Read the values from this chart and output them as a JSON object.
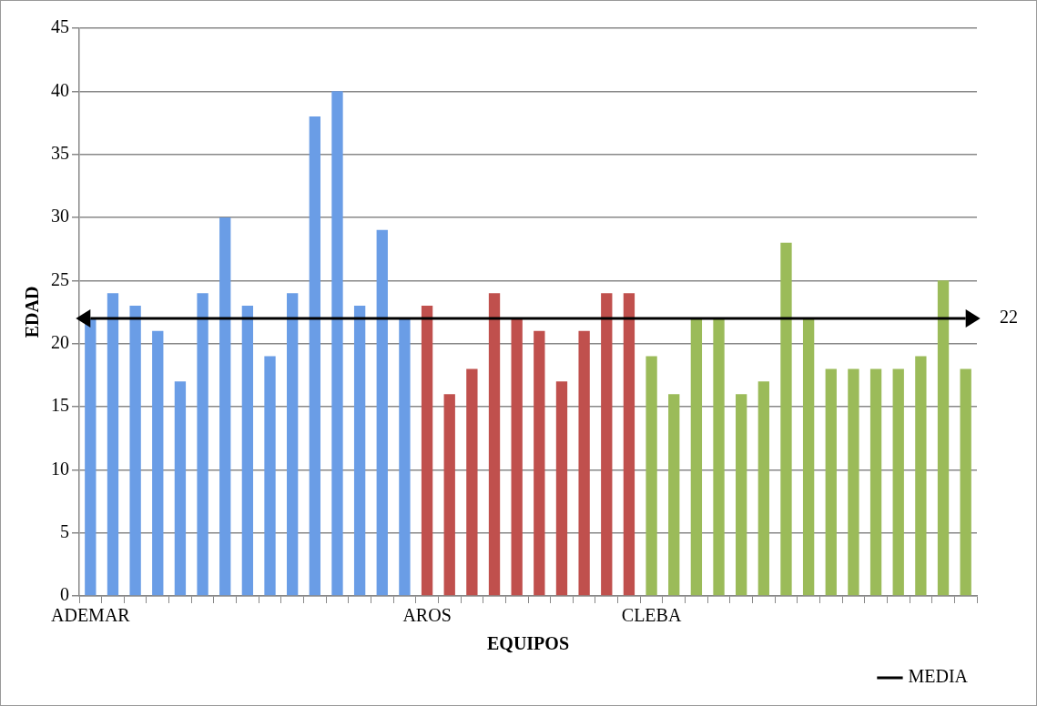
{
  "chart_data": {
    "type": "bar",
    "xlabel": "EQUIPOS",
    "ylabel": "EDAD",
    "categories": [
      "ADEMAR",
      null,
      null,
      null,
      null,
      null,
      null,
      null,
      null,
      null,
      null,
      null,
      null,
      null,
      null,
      "AROS",
      null,
      null,
      null,
      null,
      null,
      null,
      null,
      null,
      null,
      "CLEBA",
      null,
      null,
      null,
      null,
      null,
      null,
      null,
      null,
      null,
      null,
      null,
      null,
      null,
      null
    ],
    "series": [
      {
        "colors": [
          "#6a9de6",
          "#6a9de6",
          "#6a9de6",
          "#6a9de6",
          "#6a9de6",
          "#6a9de6",
          "#6a9de6",
          "#6a9de6",
          "#6a9de6",
          "#6a9de6",
          "#6a9de6",
          "#6a9de6",
          "#6a9de6",
          "#6a9de6",
          "#6a9de6",
          "#c0504d",
          "#c0504d",
          "#c0504d",
          "#c0504d",
          "#c0504d",
          "#c0504d",
          "#c0504d",
          "#c0504d",
          "#c0504d",
          "#c0504d",
          "#9bbb59",
          "#9bbb59",
          "#9bbb59",
          "#9bbb59",
          "#9bbb59",
          "#9bbb59",
          "#9bbb59",
          "#9bbb59",
          "#9bbb59",
          "#9bbb59",
          "#9bbb59",
          "#9bbb59",
          "#9bbb59",
          "#9bbb59",
          "#9bbb59"
        ],
        "values": [
          22,
          24,
          23,
          21,
          17,
          24,
          30,
          23,
          19,
          24,
          38,
          40,
          23,
          29,
          22,
          23,
          16,
          18,
          24,
          22,
          21,
          17,
          21,
          24,
          24,
          19,
          16,
          22,
          22,
          16,
          17,
          28,
          22,
          18,
          18,
          18,
          18,
          19,
          25,
          18
        ]
      },
      {
        "type": "line",
        "name": "MEDIA",
        "color": "#000000",
        "values": [
          22,
          22,
          22,
          22,
          22,
          22,
          22,
          22,
          22,
          22,
          22,
          22,
          22,
          22,
          22,
          22,
          22,
          22,
          22,
          22,
          22,
          22,
          22,
          22,
          22,
          22,
          22,
          22,
          22,
          22,
          22,
          22,
          22,
          22,
          22,
          22,
          22,
          22,
          22,
          22
        ]
      }
    ],
    "annotations": [
      "22"
    ],
    "ylim": [
      0,
      45
    ],
    "yticks": [
      0,
      5,
      10,
      15,
      20,
      25,
      30,
      35,
      40,
      45
    ],
    "grid": "y",
    "legend": "bottom right",
    "marker": "none"
  }
}
